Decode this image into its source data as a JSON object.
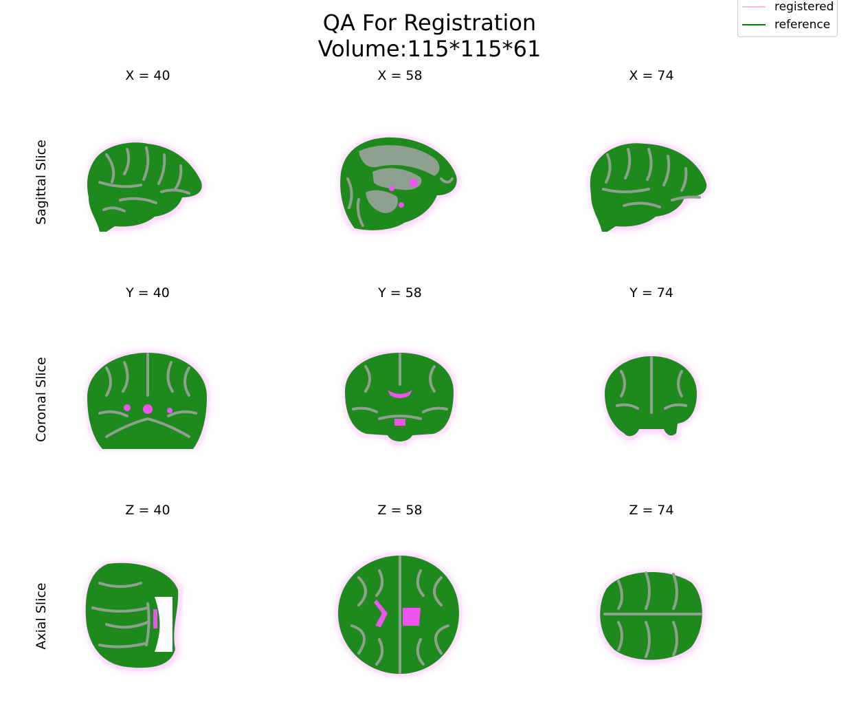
{
  "figure": {
    "title_line1": "QA For Registration",
    "title_line2": "Volume:115*115*61"
  },
  "legend": {
    "items": [
      {
        "label": "registered",
        "color": "#ffc0cb"
      },
      {
        "label": "reference",
        "color": "#008000"
      }
    ]
  },
  "colors": {
    "reference": "#1e8a1e",
    "grey_matter": "#8fa08f",
    "registered": "#ee55ee"
  },
  "rows": [
    {
      "label": "Sagittal Slice",
      "titles": [
        "X = 40",
        "X = 58",
        "X = 74"
      ]
    },
    {
      "label": "Coronal Slice",
      "titles": [
        "Y = 40",
        "Y = 58",
        "Y = 74"
      ]
    },
    {
      "label": "Axial Slice",
      "titles": [
        "Z = 40",
        "Z = 58",
        "Z = 74"
      ]
    }
  ]
}
